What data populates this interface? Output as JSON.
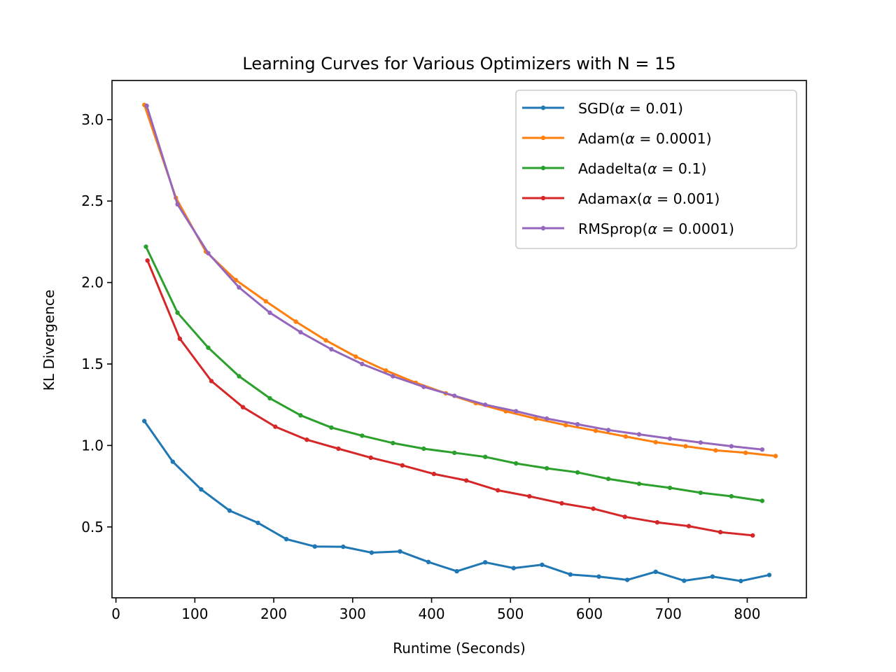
{
  "chart_data": {
    "type": "line",
    "title": "Learning Curves for Various Optimizers with N = 15",
    "xlabel": "Runtime (Seconds)",
    "ylabel": "KL Divergence",
    "xlim": [
      -5,
      875
    ],
    "ylim": [
      0.065,
      3.24
    ],
    "xticks": [
      0,
      100,
      200,
      300,
      400,
      500,
      600,
      700,
      800
    ],
    "xtick_labels": [
      "0",
      "100",
      "200",
      "300",
      "400",
      "500",
      "600",
      "700",
      "800"
    ],
    "yticks": [
      0.5,
      1.0,
      1.5,
      2.0,
      2.5,
      3.0
    ],
    "ytick_labels": [
      "0.5",
      "1.0",
      "1.5",
      "2.0",
      "2.5",
      "3.0"
    ],
    "grid": false,
    "legend_position": "top-right",
    "series": [
      {
        "name": "SGD(α = 0.01)",
        "legend_prefix": "SGD(",
        "legend_suffix": " = 0.01)",
        "color": "#1f77b4",
        "x": [
          36,
          72,
          108,
          144,
          180,
          216,
          252,
          288,
          324,
          360,
          396,
          432,
          468,
          504,
          540,
          576,
          612,
          648,
          684,
          720,
          756,
          792,
          828
        ],
        "y": [
          1.15,
          0.9,
          0.73,
          0.6,
          0.525,
          0.425,
          0.38,
          0.378,
          0.342,
          0.35,
          0.285,
          0.228,
          0.283,
          0.247,
          0.268,
          0.208,
          0.195,
          0.175,
          0.225,
          0.17,
          0.195,
          0.168,
          0.205
        ]
      },
      {
        "name": "Adam(α = 0.0001)",
        "legend_prefix": "Adam(",
        "legend_suffix": " = 0.0001)",
        "color": "#ff7f0e",
        "x": [
          36,
          76,
          114,
          152,
          190,
          228,
          266,
          304,
          342,
          380,
          418,
          456,
          494,
          532,
          570,
          608,
          646,
          684,
          722,
          760,
          798,
          836
        ],
        "y": [
          3.09,
          2.52,
          2.19,
          2.015,
          1.885,
          1.76,
          1.645,
          1.545,
          1.46,
          1.385,
          1.32,
          1.26,
          1.21,
          1.165,
          1.125,
          1.09,
          1.055,
          1.02,
          0.995,
          0.97,
          0.955,
          0.935
        ]
      },
      {
        "name": "Adadelta(α = 0.1)",
        "legend_prefix": "Adadelta(",
        "legend_suffix": " = 0.1)",
        "color": "#2ca02c",
        "x": [
          38,
          78,
          117,
          156,
          195,
          234,
          273,
          312,
          351,
          390,
          429,
          468,
          507,
          546,
          585,
          624,
          663,
          702,
          741,
          780,
          819
        ],
        "y": [
          2.22,
          1.815,
          1.6,
          1.425,
          1.29,
          1.185,
          1.11,
          1.06,
          1.015,
          0.98,
          0.955,
          0.93,
          0.89,
          0.86,
          0.835,
          0.795,
          0.765,
          0.74,
          0.71,
          0.688,
          0.66
        ]
      },
      {
        "name": "Adamax(α = 0.001)",
        "legend_prefix": "Adamax(",
        "legend_suffix": " = 0.001)",
        "color": "#d62728",
        "x": [
          40,
          81,
          121,
          161,
          202,
          242,
          282,
          323,
          363,
          403,
          444,
          484,
          524,
          565,
          605,
          645,
          686,
          726,
          766,
          807
        ],
        "y": [
          2.135,
          1.655,
          1.395,
          1.235,
          1.115,
          1.035,
          0.98,
          0.925,
          0.878,
          0.825,
          0.785,
          0.725,
          0.688,
          0.645,
          0.612,
          0.562,
          0.528,
          0.505,
          0.468,
          0.448
        ]
      },
      {
        "name": "RMSprop(α = 0.0001)",
        "legend_prefix": "RMSprop(",
        "legend_suffix": " = 0.0001)",
        "color": "#9467bd",
        "x": [
          39,
          78,
          117,
          156,
          195,
          234,
          273,
          312,
          351,
          390,
          429,
          468,
          507,
          546,
          585,
          624,
          663,
          702,
          741,
          780,
          819
        ],
        "y": [
          3.085,
          2.48,
          2.18,
          1.97,
          1.815,
          1.695,
          1.59,
          1.5,
          1.425,
          1.36,
          1.305,
          1.25,
          1.21,
          1.165,
          1.13,
          1.095,
          1.068,
          1.042,
          1.018,
          0.995,
          0.975
        ]
      }
    ]
  }
}
